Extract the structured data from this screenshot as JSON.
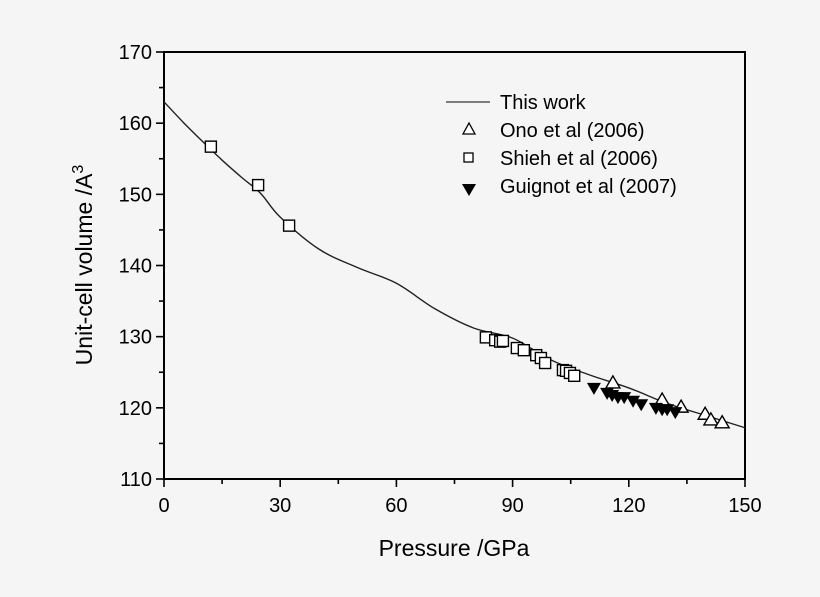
{
  "chart_data": {
    "type": "scatter",
    "title": "",
    "xlabel": "Pressure /GPa",
    "ylabel": "Unit-cell volume /A",
    "ylabel_superscript": "3",
    "xlim": [
      0,
      150
    ],
    "ylim": [
      110,
      170
    ],
    "x_ticks": [
      0,
      30,
      60,
      90,
      120,
      150
    ],
    "x_minor_step": 15,
    "y_ticks": [
      110,
      120,
      130,
      140,
      150,
      160,
      170
    ],
    "y_minor_step": 5,
    "grid": false,
    "legend_position": "upper right (inside)",
    "series": [
      {
        "name": "This work",
        "kind": "line",
        "color": "#222222",
        "x": [
          0,
          5,
          10,
          15,
          20,
          25,
          30,
          40,
          50,
          60,
          70,
          80,
          90,
          100,
          110,
          120,
          130,
          140,
          150
        ],
        "y": [
          163.0,
          160.1,
          157.4,
          154.8,
          152.4,
          150.1,
          146.8,
          142.3,
          139.7,
          137.5,
          133.9,
          131.2,
          129.8,
          126.7,
          124.6,
          122.8,
          120.6,
          118.9,
          117.2
        ]
      },
      {
        "name": "Ono et al (2006)",
        "kind": "scatter",
        "marker": "triangle-up-open",
        "x": [
          115.9,
          128.6,
          133.5,
          139.7,
          141.2,
          144.1
        ],
        "y": [
          123.5,
          121.1,
          120.1,
          119.1,
          118.3,
          117.9
        ]
      },
      {
        "name": "Shieh et al (2006)",
        "kind": "scatter",
        "marker": "square-open",
        "x": [
          12.1,
          24.3,
          32.3,
          83.1,
          85.5,
          86.8,
          87.5,
          91.1,
          92.9,
          96.1,
          97.3,
          98.4,
          103.0,
          103.8,
          104.8,
          105.9
        ],
        "y": [
          156.7,
          151.3,
          145.6,
          129.9,
          129.5,
          129.3,
          129.4,
          128.4,
          128.1,
          127.4,
          127.0,
          126.3,
          125.3,
          125.2,
          124.9,
          124.5
        ]
      },
      {
        "name": "Guignot et al (2007)",
        "kind": "scatter",
        "marker": "triangle-down-filled",
        "x": [
          111.0,
          114.4,
          115.7,
          117.2,
          118.8,
          121.1,
          123.2,
          127.0,
          128.6,
          129.9,
          132.0
        ],
        "y": [
          122.8,
          122.1,
          121.8,
          121.5,
          121.5,
          121.0,
          120.5,
          120.0,
          119.8,
          119.8,
          119.4
        ]
      }
    ]
  },
  "legend": {
    "items": [
      {
        "label": "This work",
        "symbol": "line"
      },
      {
        "label": "Ono et al (2006)",
        "symbol": "triangle-up-open"
      },
      {
        "label": "Shieh et al (2006)",
        "symbol": "square-open"
      },
      {
        "label": "Guignot et al (2007)",
        "symbol": "triangle-down-filled"
      }
    ]
  },
  "colors": {
    "background": "#f5f5f5",
    "axis": "#000000",
    "curve": "#222222",
    "marker_fill_open": "#ffffff",
    "marker_fill_solid": "#000000"
  }
}
